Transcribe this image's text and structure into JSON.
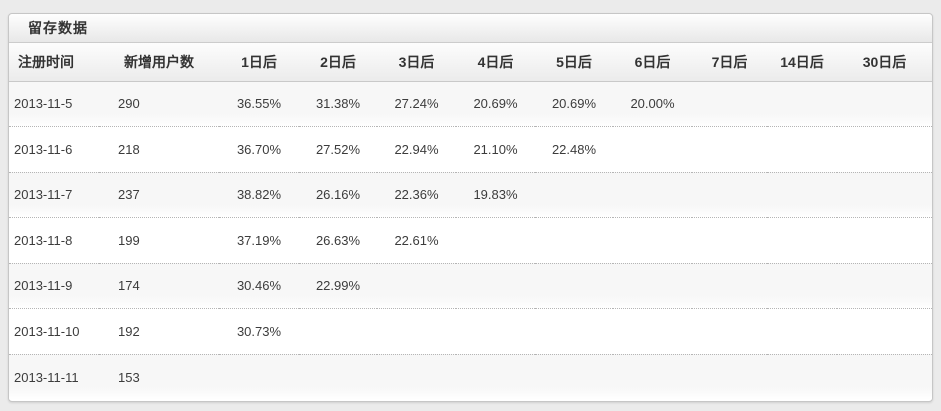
{
  "panel": {
    "title": "留存数据"
  },
  "table": {
    "columns": [
      "注册时间",
      "新增用户数",
      "1日后",
      "2日后",
      "3日后",
      "4日后",
      "5日后",
      "6日后",
      "7日后",
      "14日后",
      "30日后"
    ],
    "column_keys": [
      "register-date",
      "new-users",
      "day-1",
      "day-2",
      "day-3",
      "day-4",
      "day-5",
      "day-6",
      "day-7",
      "day-14",
      "day-30"
    ],
    "rows": [
      [
        "2013-11-5",
        "290",
        "36.55%",
        "31.38%",
        "27.24%",
        "20.69%",
        "20.69%",
        "20.00%",
        "",
        "",
        ""
      ],
      [
        "2013-11-6",
        "218",
        "36.70%",
        "27.52%",
        "22.94%",
        "21.10%",
        "22.48%",
        "",
        "",
        "",
        ""
      ],
      [
        "2013-11-7",
        "237",
        "38.82%",
        "26.16%",
        "22.36%",
        "19.83%",
        "",
        "",
        "",
        "",
        ""
      ],
      [
        "2013-11-8",
        "199",
        "37.19%",
        "26.63%",
        "22.61%",
        "",
        "",
        "",
        "",
        "",
        ""
      ],
      [
        "2013-11-9",
        "174",
        "30.46%",
        "22.99%",
        "",
        "",
        "",
        "",
        "",
        "",
        ""
      ],
      [
        "2013-11-10",
        "192",
        "30.73%",
        "",
        "",
        "",
        "",
        "",
        "",
        "",
        ""
      ],
      [
        "2013-11-11",
        "153",
        "",
        "",
        "",
        "",
        "",
        "",
        "",
        "",
        ""
      ]
    ]
  }
}
